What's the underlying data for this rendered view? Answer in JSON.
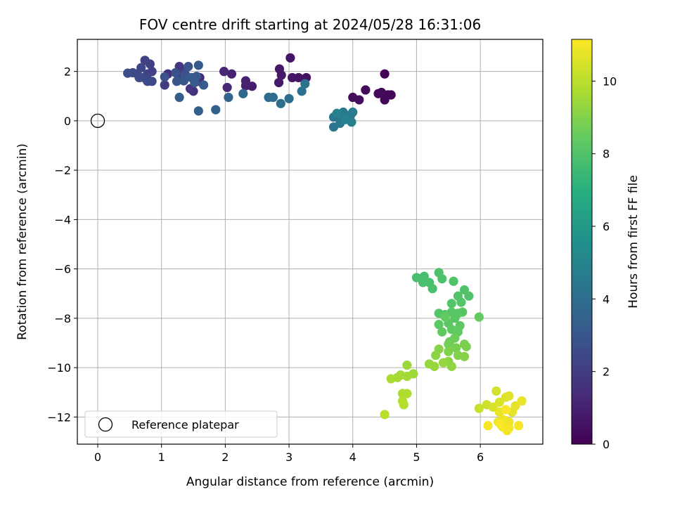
{
  "chart_data": {
    "type": "scatter",
    "title": "FOV centre drift starting at 2024/05/28 16:31:06",
    "xlabel": "Angular distance from reference (arcmin)",
    "ylabel": "Rotation from reference (arcmin)",
    "xlim": [
      -0.32,
      6.98
    ],
    "ylim": [
      -13.1,
      3.3
    ],
    "xticks": [
      "0",
      "1",
      "2",
      "3",
      "4",
      "5",
      "6"
    ],
    "yticks": [
      "2",
      "0",
      "−2",
      "−4",
      "−6",
      "−8",
      "−10",
      "−12"
    ],
    "grid": true,
    "legend": {
      "position": "lower-left",
      "entries": [
        "Reference platepar"
      ]
    },
    "reference_point": {
      "x": 0,
      "y": 0,
      "label": "Reference platepar"
    },
    "colorbar": {
      "label": "Hours from first FF file",
      "colormap": "viridis",
      "min": 0,
      "max": 11.15,
      "ticks": [
        "0",
        "2",
        "4",
        "6",
        "8",
        "10"
      ]
    },
    "points": [
      {
        "x": 4.5,
        "y": 1.9,
        "t": 0.1
      },
      {
        "x": 4.55,
        "y": 1.05,
        "t": 0.15
      },
      {
        "x": 4.45,
        "y": 1.15,
        "t": 0.2
      },
      {
        "x": 4.5,
        "y": 0.85,
        "t": 0.2
      },
      {
        "x": 4.4,
        "y": 1.1,
        "t": 0.25
      },
      {
        "x": 4.6,
        "y": 1.05,
        "t": 0.15
      },
      {
        "x": 4.2,
        "y": 1.25,
        "t": 0.3
      },
      {
        "x": 4.0,
        "y": 0.95,
        "t": 0.35
      },
      {
        "x": 4.1,
        "y": 0.85,
        "t": 0.4
      },
      {
        "x": 3.27,
        "y": 1.75,
        "t": 0.55
      },
      {
        "x": 3.15,
        "y": 1.75,
        "t": 0.6
      },
      {
        "x": 3.05,
        "y": 1.75,
        "t": 0.65
      },
      {
        "x": 3.02,
        "y": 2.55,
        "t": 0.6
      },
      {
        "x": 2.85,
        "y": 2.1,
        "t": 0.7
      },
      {
        "x": 2.88,
        "y": 1.85,
        "t": 0.75
      },
      {
        "x": 2.84,
        "y": 1.55,
        "t": 0.8
      },
      {
        "x": 2.42,
        "y": 1.4,
        "t": 0.9
      },
      {
        "x": 2.32,
        "y": 1.62,
        "t": 1.0
      },
      {
        "x": 2.32,
        "y": 1.42,
        "t": 1.05
      },
      {
        "x": 2.1,
        "y": 1.9,
        "t": 1.1
      },
      {
        "x": 1.98,
        "y": 2.0,
        "t": 1.2
      },
      {
        "x": 2.03,
        "y": 1.35,
        "t": 1.25
      },
      {
        "x": 1.6,
        "y": 1.75,
        "t": 1.35
      },
      {
        "x": 1.58,
        "y": 1.6,
        "t": 1.4
      },
      {
        "x": 1.1,
        "y": 1.9,
        "t": 1.45
      },
      {
        "x": 1.5,
        "y": 1.2,
        "t": 1.6
      },
      {
        "x": 1.45,
        "y": 1.3,
        "t": 1.7
      },
      {
        "x": 1.28,
        "y": 2.2,
        "t": 1.8
      },
      {
        "x": 1.32,
        "y": 2.05,
        "t": 1.85
      },
      {
        "x": 1.27,
        "y": 1.8,
        "t": 1.95
      },
      {
        "x": 1.05,
        "y": 1.45,
        "t": 2.0
      },
      {
        "x": 0.82,
        "y": 2.3,
        "t": 2.1
      },
      {
        "x": 0.85,
        "y": 2.0,
        "t": 2.15
      },
      {
        "x": 0.74,
        "y": 2.45,
        "t": 2.2
      },
      {
        "x": 0.78,
        "y": 1.9,
        "t": 2.25
      },
      {
        "x": 0.62,
        "y": 1.9,
        "t": 2.3
      },
      {
        "x": 0.68,
        "y": 2.15,
        "t": 2.35
      },
      {
        "x": 0.72,
        "y": 1.75,
        "t": 2.4
      },
      {
        "x": 0.85,
        "y": 1.6,
        "t": 2.45
      },
      {
        "x": 0.78,
        "y": 1.6,
        "t": 2.5
      },
      {
        "x": 0.65,
        "y": 1.75,
        "t": 2.55
      },
      {
        "x": 0.55,
        "y": 1.95,
        "t": 2.45
      },
      {
        "x": 0.47,
        "y": 1.93,
        "t": 2.6
      },
      {
        "x": 1.05,
        "y": 1.78,
        "t": 2.7
      },
      {
        "x": 1.22,
        "y": 1.95,
        "t": 2.75
      },
      {
        "x": 1.37,
        "y": 1.9,
        "t": 2.8
      },
      {
        "x": 1.42,
        "y": 2.2,
        "t": 2.9
      },
      {
        "x": 1.35,
        "y": 1.62,
        "t": 2.95
      },
      {
        "x": 1.24,
        "y": 1.6,
        "t": 3.0
      },
      {
        "x": 1.55,
        "y": 1.8,
        "t": 3.05
      },
      {
        "x": 1.58,
        "y": 2.25,
        "t": 3.1
      },
      {
        "x": 1.47,
        "y": 1.75,
        "t": 3.15
      },
      {
        "x": 1.52,
        "y": 1.55,
        "t": 3.2
      },
      {
        "x": 1.66,
        "y": 1.45,
        "t": 3.25
      },
      {
        "x": 1.28,
        "y": 0.95,
        "t": 3.3
      },
      {
        "x": 1.58,
        "y": 0.4,
        "t": 3.35
      },
      {
        "x": 1.85,
        "y": 0.45,
        "t": 3.45
      },
      {
        "x": 2.05,
        "y": 0.95,
        "t": 3.55
      },
      {
        "x": 2.28,
        "y": 1.1,
        "t": 3.7
      },
      {
        "x": 2.68,
        "y": 0.95,
        "t": 3.85
      },
      {
        "x": 2.75,
        "y": 0.95,
        "t": 3.9
      },
      {
        "x": 2.87,
        "y": 0.7,
        "t": 3.95
      },
      {
        "x": 3.0,
        "y": 0.9,
        "t": 4.0
      },
      {
        "x": 3.2,
        "y": 1.2,
        "t": 4.15
      },
      {
        "x": 3.25,
        "y": 1.5,
        "t": 4.25
      },
      {
        "x": 3.7,
        "y": -0.25,
        "t": 4.3
      },
      {
        "x": 3.7,
        "y": 0.15,
        "t": 4.35
      },
      {
        "x": 3.78,
        "y": 0.25,
        "t": 4.4
      },
      {
        "x": 3.85,
        "y": 0.35,
        "t": 4.45
      },
      {
        "x": 3.8,
        "y": -0.1,
        "t": 4.5
      },
      {
        "x": 3.92,
        "y": 0.2,
        "t": 4.55
      },
      {
        "x": 3.97,
        "y": 0.25,
        "t": 4.6
      },
      {
        "x": 4.0,
        "y": 0.35,
        "t": 4.65
      },
      {
        "x": 3.98,
        "y": -0.05,
        "t": 4.7
      },
      {
        "x": 3.88,
        "y": 0.05,
        "t": 4.75
      },
      {
        "x": 3.75,
        "y": 0.3,
        "t": 4.8
      },
      {
        "x": 5.0,
        "y": -6.35,
        "t": 7.8
      },
      {
        "x": 5.12,
        "y": -6.3,
        "t": 7.82
      },
      {
        "x": 5.1,
        "y": -6.55,
        "t": 7.85
      },
      {
        "x": 5.2,
        "y": -6.55,
        "t": 7.88
      },
      {
        "x": 5.25,
        "y": -6.8,
        "t": 7.9
      },
      {
        "x": 5.35,
        "y": -6.15,
        "t": 7.92
      },
      {
        "x": 5.4,
        "y": -6.4,
        "t": 7.95
      },
      {
        "x": 5.58,
        "y": -6.5,
        "t": 7.98
      },
      {
        "x": 5.75,
        "y": -6.85,
        "t": 8.0
      },
      {
        "x": 5.82,
        "y": -7.1,
        "t": 8.02
      },
      {
        "x": 5.65,
        "y": -7.1,
        "t": 8.05
      },
      {
        "x": 5.55,
        "y": -7.4,
        "t": 8.08
      },
      {
        "x": 5.7,
        "y": -7.35,
        "t": 8.1
      },
      {
        "x": 5.35,
        "y": -7.8,
        "t": 8.12
      },
      {
        "x": 5.45,
        "y": -7.85,
        "t": 8.15
      },
      {
        "x": 5.55,
        "y": -7.75,
        "t": 8.18
      },
      {
        "x": 5.65,
        "y": -7.8,
        "t": 8.2
      },
      {
        "x": 5.72,
        "y": -7.75,
        "t": 8.22
      },
      {
        "x": 5.6,
        "y": -8.0,
        "t": 8.25
      },
      {
        "x": 5.5,
        "y": -8.2,
        "t": 8.28
      },
      {
        "x": 5.35,
        "y": -8.25,
        "t": 8.3
      },
      {
        "x": 5.68,
        "y": -8.3,
        "t": 8.32
      },
      {
        "x": 5.55,
        "y": -8.45,
        "t": 8.35
      },
      {
        "x": 5.4,
        "y": -8.55,
        "t": 8.38
      },
      {
        "x": 5.65,
        "y": -8.55,
        "t": 8.4
      },
      {
        "x": 5.45,
        "y": -7.95,
        "t": 8.42
      },
      {
        "x": 5.98,
        "y": -7.95,
        "t": 8.45
      },
      {
        "x": 5.6,
        "y": -8.8,
        "t": 8.55
      },
      {
        "x": 5.52,
        "y": -8.95,
        "t": 8.65
      },
      {
        "x": 5.5,
        "y": -9.05,
        "t": 8.7
      },
      {
        "x": 5.62,
        "y": -9.2,
        "t": 8.8
      },
      {
        "x": 5.75,
        "y": -9.05,
        "t": 8.85
      },
      {
        "x": 5.78,
        "y": -9.15,
        "t": 8.9
      },
      {
        "x": 5.5,
        "y": -9.35,
        "t": 8.95
      },
      {
        "x": 5.65,
        "y": -9.5,
        "t": 9.0
      },
      {
        "x": 5.75,
        "y": -9.55,
        "t": 9.05
      },
      {
        "x": 5.35,
        "y": -9.25,
        "t": 9.1
      },
      {
        "x": 5.3,
        "y": -9.5,
        "t": 9.15
      },
      {
        "x": 5.5,
        "y": -9.75,
        "t": 9.2
      },
      {
        "x": 5.55,
        "y": -9.95,
        "t": 9.25
      },
      {
        "x": 5.42,
        "y": -9.8,
        "t": 9.3
      },
      {
        "x": 5.2,
        "y": -9.85,
        "t": 9.35
      },
      {
        "x": 5.28,
        "y": -9.95,
        "t": 9.4
      },
      {
        "x": 4.85,
        "y": -9.9,
        "t": 9.45
      },
      {
        "x": 4.95,
        "y": -10.25,
        "t": 9.5
      },
      {
        "x": 4.85,
        "y": -10.35,
        "t": 9.55
      },
      {
        "x": 4.75,
        "y": -10.3,
        "t": 9.6
      },
      {
        "x": 4.7,
        "y": -10.4,
        "t": 9.65
      },
      {
        "x": 4.6,
        "y": -10.45,
        "t": 9.7
      },
      {
        "x": 4.78,
        "y": -11.05,
        "t": 9.75
      },
      {
        "x": 4.85,
        "y": -11.05,
        "t": 9.8
      },
      {
        "x": 4.78,
        "y": -11.35,
        "t": 9.85
      },
      {
        "x": 4.8,
        "y": -11.5,
        "t": 9.9
      },
      {
        "x": 4.5,
        "y": -11.9,
        "t": 9.95
      },
      {
        "x": 5.98,
        "y": -11.65,
        "t": 10.2
      },
      {
        "x": 6.1,
        "y": -11.5,
        "t": 10.3
      },
      {
        "x": 6.25,
        "y": -10.95,
        "t": 10.4
      },
      {
        "x": 6.2,
        "y": -11.6,
        "t": 10.5
      },
      {
        "x": 6.3,
        "y": -11.4,
        "t": 10.55
      },
      {
        "x": 6.4,
        "y": -11.2,
        "t": 10.6
      },
      {
        "x": 6.45,
        "y": -11.15,
        "t": 10.65
      },
      {
        "x": 6.55,
        "y": -11.55,
        "t": 10.7
      },
      {
        "x": 6.5,
        "y": -11.8,
        "t": 10.75
      },
      {
        "x": 6.65,
        "y": -11.35,
        "t": 10.8
      },
      {
        "x": 6.3,
        "y": -11.8,
        "t": 10.82
      },
      {
        "x": 6.35,
        "y": -12.1,
        "t": 10.85
      },
      {
        "x": 6.4,
        "y": -12.15,
        "t": 10.88
      },
      {
        "x": 6.45,
        "y": -12.2,
        "t": 10.9
      },
      {
        "x": 6.28,
        "y": -12.2,
        "t": 10.92
      },
      {
        "x": 6.35,
        "y": -12.4,
        "t": 10.95
      },
      {
        "x": 6.45,
        "y": -12.45,
        "t": 10.98
      },
      {
        "x": 6.42,
        "y": -12.55,
        "t": 11.0
      },
      {
        "x": 6.6,
        "y": -12.35,
        "t": 11.02
      },
      {
        "x": 6.12,
        "y": -12.35,
        "t": 11.05
      },
      {
        "x": 6.32,
        "y": -12.3,
        "t": 11.08
      },
      {
        "x": 6.4,
        "y": -11.7,
        "t": 11.1
      }
    ]
  }
}
